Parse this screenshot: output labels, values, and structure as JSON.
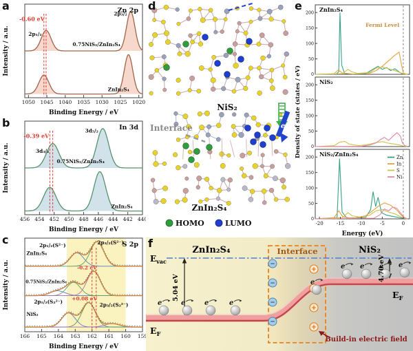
{
  "letters": {
    "a": "a",
    "b": "b",
    "c": "c",
    "d": "d",
    "e": "e",
    "f": "f"
  },
  "panel_d": {
    "nis2": "NiS₂",
    "interface": "Interface",
    "znin2s4": "ZnIn₂S₄",
    "homo": "HOMO",
    "lumo": "LUMO",
    "e_label": "e",
    "colors": {
      "homo": "#2e9e3c",
      "lumo": "#1f3fd0",
      "s": "#e8d32c",
      "bond": "#bb8b8b",
      "metal": "#98a2bd",
      "rosy": "#c79f9f"
    }
  },
  "panel_f": {
    "evac_base": "E",
    "evac_sub": "vac",
    "ef_base": "E",
    "ef_sub": "F",
    "znin2s4": "ZnIn₂S₄",
    "interface": "Interface",
    "nis2": "NiS₂",
    "wf_left": "5.04 eV",
    "wf_right": "4.70 eV",
    "e_label": "e",
    "minus_symbol": "−",
    "plus_symbol": "+",
    "field_label": "Build-in electric field",
    "colors": {
      "left_bg": "#f7f1cd",
      "right_bg": "#c1c1c1",
      "box": "#e8821e",
      "band": "#ef9f9f",
      "band_edge": "#c24848",
      "minus_fill": "#a8cce4",
      "minus_stroke": "#4f86b5",
      "plus_fill": "#fde7cd",
      "plus_stroke": "#e07a1a",
      "evac_line": "#4f7fd0",
      "field_text": "#8b1a1a",
      "interface_text": "#a3590f"
    }
  },
  "chart_data": [
    {
      "id": "a",
      "type": "line",
      "kind": "xps",
      "corner_label": "Zn 2p",
      "xlabel": "Binding Energy / eV",
      "ylabel": "Intensity / a.u.",
      "x_min": 1019,
      "x_max": 1051,
      "x_ticks": [
        1050,
        1045,
        1040,
        1035,
        1030,
        1025,
        1020
      ],
      "line_color": "#a3624a",
      "fill_color": "#f6d4c8",
      "accent": "#e03a2f",
      "spectra": [
        {
          "label": "0.75NiS₂/ZnIn₂S₄",
          "label_x": 1031.5,
          "label_y": 0.55,
          "label_anchor": "middle",
          "label_size": 7.3,
          "base": 0.5,
          "scale": 0.42,
          "peaks": [
            [
              1045.2,
              0.52,
              1.35
            ],
            [
              1022.2,
              1.0,
              1.15
            ]
          ]
        },
        {
          "label": "ZnIn₂S₄",
          "label_x": 1025.5,
          "label_y": 0.07,
          "label_anchor": "middle",
          "label_size": 7.3,
          "base": 0.04,
          "scale": 0.42,
          "peaks": [
            [
              1045.8,
              0.48,
              1.35
            ],
            [
              1022.8,
              1.0,
              1.15
            ]
          ]
        }
      ],
      "dash_x": [
        1045.2,
        1045.8
      ],
      "shift_label": "-0.60 eV",
      "shift_x": 1045.6,
      "shift_y": 0.82,
      "shift_anchor": "end",
      "peak_labels": [
        {
          "text": "2p₁/₂",
          "x": 1048.2,
          "y": 0.66
        },
        {
          "text": "2p₃/₂",
          "x": 1025.0,
          "y": 0.88
        }
      ]
    },
    {
      "id": "b",
      "type": "line",
      "kind": "xps",
      "corner_label": "In 3d",
      "xlabel": "Binding Energy / eV",
      "ylabel": "Intensity / a.u.",
      "x_min": 440,
      "x_max": 456,
      "x_ticks": [
        456,
        454,
        452,
        450,
        448,
        446,
        444,
        442,
        440
      ],
      "line_color": "#53926b",
      "fill_color": "#ccdfe8",
      "accent": "#e03a2f",
      "spectra": [
        {
          "label": "0.75NiS₂/ZnIn₂S₄",
          "label_x": 448.4,
          "label_y": 0.55,
          "label_anchor": "middle",
          "label_size": 7.3,
          "base": 0.5,
          "scale": 0.42,
          "peaks": [
            [
              452.2,
              0.62,
              0.85
            ],
            [
              445.4,
              1.0,
              0.8
            ]
          ]
        },
        {
          "label": "ZnIn₂S₄",
          "label_x": 442.8,
          "label_y": 0.07,
          "label_anchor": "middle",
          "label_size": 7.3,
          "base": 0.04,
          "scale": 0.42,
          "peaks": [
            [
              452.6,
              0.6,
              0.85
            ],
            [
              445.8,
              1.0,
              0.8
            ]
          ]
        }
      ],
      "dash_x": [
        452.2,
        452.6
      ],
      "shift_label": "-0.39 eV",
      "shift_x": 452.7,
      "shift_y": 0.82,
      "shift_anchor": "end",
      "peak_labels": [
        {
          "text": "3d₃/₂",
          "x": 453.6,
          "y": 0.66
        },
        {
          "text": "3d₅/₂",
          "x": 446.9,
          "y": 0.88
        }
      ]
    },
    {
      "id": "c",
      "type": "line",
      "kind": "xps-fit",
      "corner_label": "S 2p",
      "xlabel": "Binding Energy / eV",
      "ylabel": "Intensity / a.u.",
      "x_min": 159,
      "x_max": 166,
      "x_ticks": [
        166,
        165,
        164,
        163,
        162,
        161,
        160,
        159
      ],
      "band": [
        163.5,
        160.0
      ],
      "band_color": "#faf3c0",
      "envelope_color": "#c87f3c",
      "data_color": "#666666",
      "comp_colors": [
        "#5a7fc0",
        "#58a05a",
        "#b06ab0"
      ],
      "accent": "#e03a2f",
      "spectra": [
        {
          "label": "ZnIn₂S₄",
          "label_x": 165.9,
          "label_y": 0.82,
          "label_anchor": "start",
          "label_size": 7.0,
          "base": 0.7,
          "scale": 0.26,
          "peaks": [
            [
              162.9,
              0.55,
              0.4
            ],
            [
              161.7,
              1.0,
              0.4
            ]
          ]
        },
        {
          "label": "0.75NiS₂/ZnIn₂S₄",
          "label_x": 165.95,
          "label_y": 0.52,
          "label_anchor": "start",
          "label_size": 6.3,
          "base": 0.385,
          "scale": 0.26,
          "peaks": [
            [
              164.05,
              0.2,
              0.45
            ],
            [
              163.1,
              0.55,
              0.4
            ],
            [
              161.9,
              1.0,
              0.4
            ]
          ]
        },
        {
          "label": "NiS₂",
          "label_x": 165.9,
          "label_y": 0.17,
          "label_anchor": "start",
          "label_size": 7.0,
          "base": 0.05,
          "scale": 0.26,
          "peaks": [
            [
              163.4,
              0.58,
              0.4
            ],
            [
              162.2,
              1.0,
              0.4
            ],
            [
              160.8,
              0.14,
              0.45
            ]
          ]
        }
      ],
      "dash_x": [
        162.0,
        161.75
      ],
      "red_labels": [
        {
          "text": "-0.2 eV",
          "x": 162.3,
          "y": 0.665
        },
        {
          "text": "+0.08 eV",
          "x": 162.45,
          "y": 0.335
        }
      ],
      "peak_labels": [
        {
          "text": "2p₁/₂(S²⁻)",
          "x": 164.35,
          "y": 0.905
        },
        {
          "text": "2p₃/₂(S²⁻)",
          "x": 160.9,
          "y": 0.935
        },
        {
          "text": "2p₁/₂(S₂²⁻)",
          "x": 164.6,
          "y": 0.3
        },
        {
          "text": "2p₃/₂(S₂²⁻)",
          "x": 160.7,
          "y": 0.27
        }
      ]
    },
    {
      "id": "e",
      "type": "line",
      "kind": "dos",
      "xlabel": "Energy (eV)",
      "ylabel": "Density of state (states / eV)",
      "x_min": -21,
      "x_max": 1.5,
      "x_ticks": [
        -20,
        -15,
        -10,
        -5,
        0
      ],
      "y_ticks": [
        0,
        50,
        100,
        150,
        200
      ],
      "y_max": 225,
      "fermi_label": "Fermi Level",
      "fermi_color": "#cd8a3d",
      "fermi_x": 0,
      "colors": {
        "Zn": "#35a186",
        "In": "#e2a23f",
        "S": "#cfc04a",
        "Ni": "#e089a8"
      },
      "legend": [
        "Zn",
        "In",
        "S",
        "Ni"
      ],
      "subplots": [
        {
          "title": "ZnIn₂S₄",
          "show_fermi_label": true,
          "series": [
            {
              "el": "Zn",
              "pts": [
                [
                  -21,
                  0
                ],
                [
                  -16,
                  1
                ],
                [
                  -15.4,
                  8
                ],
                [
                  -15.1,
                  200
                ],
                [
                  -14.7,
                  30
                ],
                [
                  -14,
                  3
                ],
                [
                  -12,
                  1
                ],
                [
                  -9,
                  2
                ],
                [
                  -7,
                  18
                ],
                [
                  -6,
                  26
                ],
                [
                  -5,
                  16
                ],
                [
                  -4,
                  22
                ],
                [
                  -3,
                  12
                ],
                [
                  -2,
                  18
                ],
                [
                  -1,
                  8
                ],
                [
                  -0.3,
                  2
                ],
                [
                  1,
                  0
                ]
              ]
            },
            {
              "el": "In",
              "pts": [
                [
                  -21,
                  0
                ],
                [
                  -16.5,
                  2
                ],
                [
                  -15.5,
                  14
                ],
                [
                  -14.5,
                  4
                ],
                [
                  -12,
                  1
                ],
                [
                  -8,
                  4
                ],
                [
                  -6.5,
                  12
                ],
                [
                  -5,
                  26
                ],
                [
                  -3.5,
                  44
                ],
                [
                  -2,
                  62
                ],
                [
                  -1,
                  72
                ],
                [
                  -0.4,
                  30
                ],
                [
                  0,
                  4
                ],
                [
                  1,
                  0
                ]
              ]
            },
            {
              "el": "S",
              "pts": [
                [
                  -21,
                  0
                ],
                [
                  -14.5,
                  2
                ],
                [
                  -13.2,
                  16
                ],
                [
                  -12.4,
                  9
                ],
                [
                  -11,
                  3
                ],
                [
                  -8,
                  6
                ],
                [
                  -6.5,
                  20
                ],
                [
                  -5,
                  24
                ],
                [
                  -3.5,
                  18
                ],
                [
                  -2,
                  12
                ],
                [
                  -0.8,
                  6
                ],
                [
                  0,
                  2
                ],
                [
                  1,
                  0
                ]
              ]
            }
          ]
        },
        {
          "title": "NiS₂",
          "series": [
            {
              "el": "S",
              "pts": [
                [
                  -21,
                  0
                ],
                [
                  -16.5,
                  3
                ],
                [
                  -15.2,
                  14
                ],
                [
                  -14,
                  17
                ],
                [
                  -13,
                  9
                ],
                [
                  -12,
                  6
                ],
                [
                  -10.5,
                  3
                ],
                [
                  -8,
                  8
                ],
                [
                  -6.5,
                  13
                ],
                [
                  -5,
                  16
                ],
                [
                  -3.5,
                  11
                ],
                [
                  -2,
                  8
                ],
                [
                  -0.8,
                  5
                ],
                [
                  0,
                  2
                ],
                [
                  1,
                  0
                ]
              ]
            },
            {
              "el": "Ni",
              "pts": [
                [
                  -21,
                  0
                ],
                [
                  -10,
                  1
                ],
                [
                  -8,
                  5
                ],
                [
                  -6.5,
                  12
                ],
                [
                  -5.5,
                  22
                ],
                [
                  -4.5,
                  30
                ],
                [
                  -3.5,
                  20
                ],
                [
                  -2.5,
                  33
                ],
                [
                  -1.5,
                  45
                ],
                [
                  -0.7,
                  34
                ],
                [
                  -0.2,
                  12
                ],
                [
                  0.3,
                  4
                ],
                [
                  1,
                  0
                ]
              ]
            }
          ]
        },
        {
          "title": "NiS₂/ZnIn₂S₄",
          "legend": true,
          "series": [
            {
              "el": "Zn",
              "pts": [
                [
                  -21,
                  0
                ],
                [
                  -15.8,
                  4
                ],
                [
                  -15.2,
                  195
                ],
                [
                  -14.6,
                  22
                ],
                [
                  -13.5,
                  3
                ],
                [
                  -9,
                  4
                ],
                [
                  -7.8,
                  30
                ],
                [
                  -7.2,
                  88
                ],
                [
                  -6.6,
                  40
                ],
                [
                  -6,
                  70
                ],
                [
                  -5.2,
                  20
                ],
                [
                  -4,
                  12
                ],
                [
                  -2.5,
                  8
                ],
                [
                  -1,
                  4
                ],
                [
                  0,
                  2
                ],
                [
                  1,
                  0
                ]
              ]
            },
            {
              "el": "In",
              "pts": [
                [
                  -21,
                  0
                ],
                [
                  -16.5,
                  4
                ],
                [
                  -15.4,
                  26
                ],
                [
                  -14.4,
                  6
                ],
                [
                  -12,
                  2
                ],
                [
                  -9,
                  10
                ],
                [
                  -7.5,
                  24
                ],
                [
                  -6,
                  40
                ],
                [
                  -4.5,
                  52
                ],
                [
                  -3,
                  44
                ],
                [
                  -1.5,
                  28
                ],
                [
                  -0.5,
                  12
                ],
                [
                  0.3,
                  3
                ],
                [
                  1,
                  0
                ]
              ]
            },
            {
              "el": "S",
              "pts": [
                [
                  -21,
                  0
                ],
                [
                  -14.5,
                  4
                ],
                [
                  -13.2,
                  20
                ],
                [
                  -12.2,
                  10
                ],
                [
                  -10,
                  5
                ],
                [
                  -8,
                  12
                ],
                [
                  -6.5,
                  26
                ],
                [
                  -5,
                  30
                ],
                [
                  -3.5,
                  22
                ],
                [
                  -2,
                  16
                ],
                [
                  -0.8,
                  8
                ],
                [
                  0,
                  3
                ],
                [
                  1,
                  0
                ]
              ]
            },
            {
              "el": "Ni",
              "pts": [
                [
                  -21,
                  0
                ],
                [
                  -7,
                  2
                ],
                [
                  -5.5,
                  14
                ],
                [
                  -4.5,
                  32
                ],
                [
                  -3.5,
                  26
                ],
                [
                  -2.5,
                  38
                ],
                [
                  -1.5,
                  34
                ],
                [
                  -0.6,
                  18
                ],
                [
                  0.2,
                  5
                ],
                [
                  1,
                  0
                ]
              ]
            }
          ]
        }
      ]
    }
  ]
}
